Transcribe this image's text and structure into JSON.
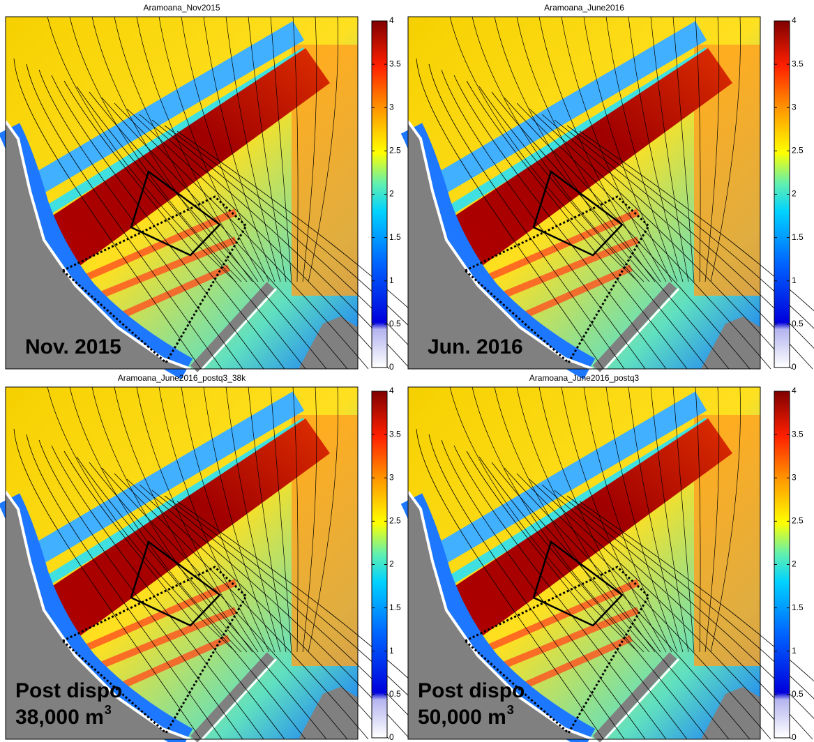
{
  "chart_data": [
    {
      "type": "heatmap",
      "title": "Aramoana_Nov2015",
      "annotation": {
        "lines": [
          "Nov. 2015"
        ]
      },
      "ylim": [
        0,
        4
      ],
      "yticks": [
        0,
        0.5,
        1,
        1.5,
        2,
        2.5,
        3,
        3.5,
        4
      ]
    },
    {
      "type": "heatmap",
      "title": "Aramoana_June2016",
      "annotation": {
        "lines": [
          "Jun. 2016"
        ]
      },
      "ylim": [
        0,
        4
      ],
      "yticks": [
        0,
        0.5,
        1,
        1.5,
        2,
        2.5,
        3,
        3.5,
        4
      ]
    },
    {
      "type": "heatmap",
      "title": "Aramoana_June2016_postq3_38k",
      "annotation": {
        "lines": [
          "Post dispo",
          "38,000 m"
        ],
        "superscript": "3"
      },
      "ylim": [
        0,
        4
      ],
      "yticks": [
        0,
        0.5,
        1,
        1.5,
        2,
        2.5,
        3,
        3.5,
        4
      ]
    },
    {
      "type": "heatmap",
      "title": "Aramoana_June2016_postq3",
      "annotation": {
        "lines": [
          "Post dispo",
          "50,000 m"
        ],
        "superscript": "3"
      },
      "ylim": [
        0,
        4
      ],
      "yticks": [
        0,
        0.5,
        1,
        1.5,
        2,
        2.5,
        3,
        3.5,
        4
      ]
    }
  ]
}
